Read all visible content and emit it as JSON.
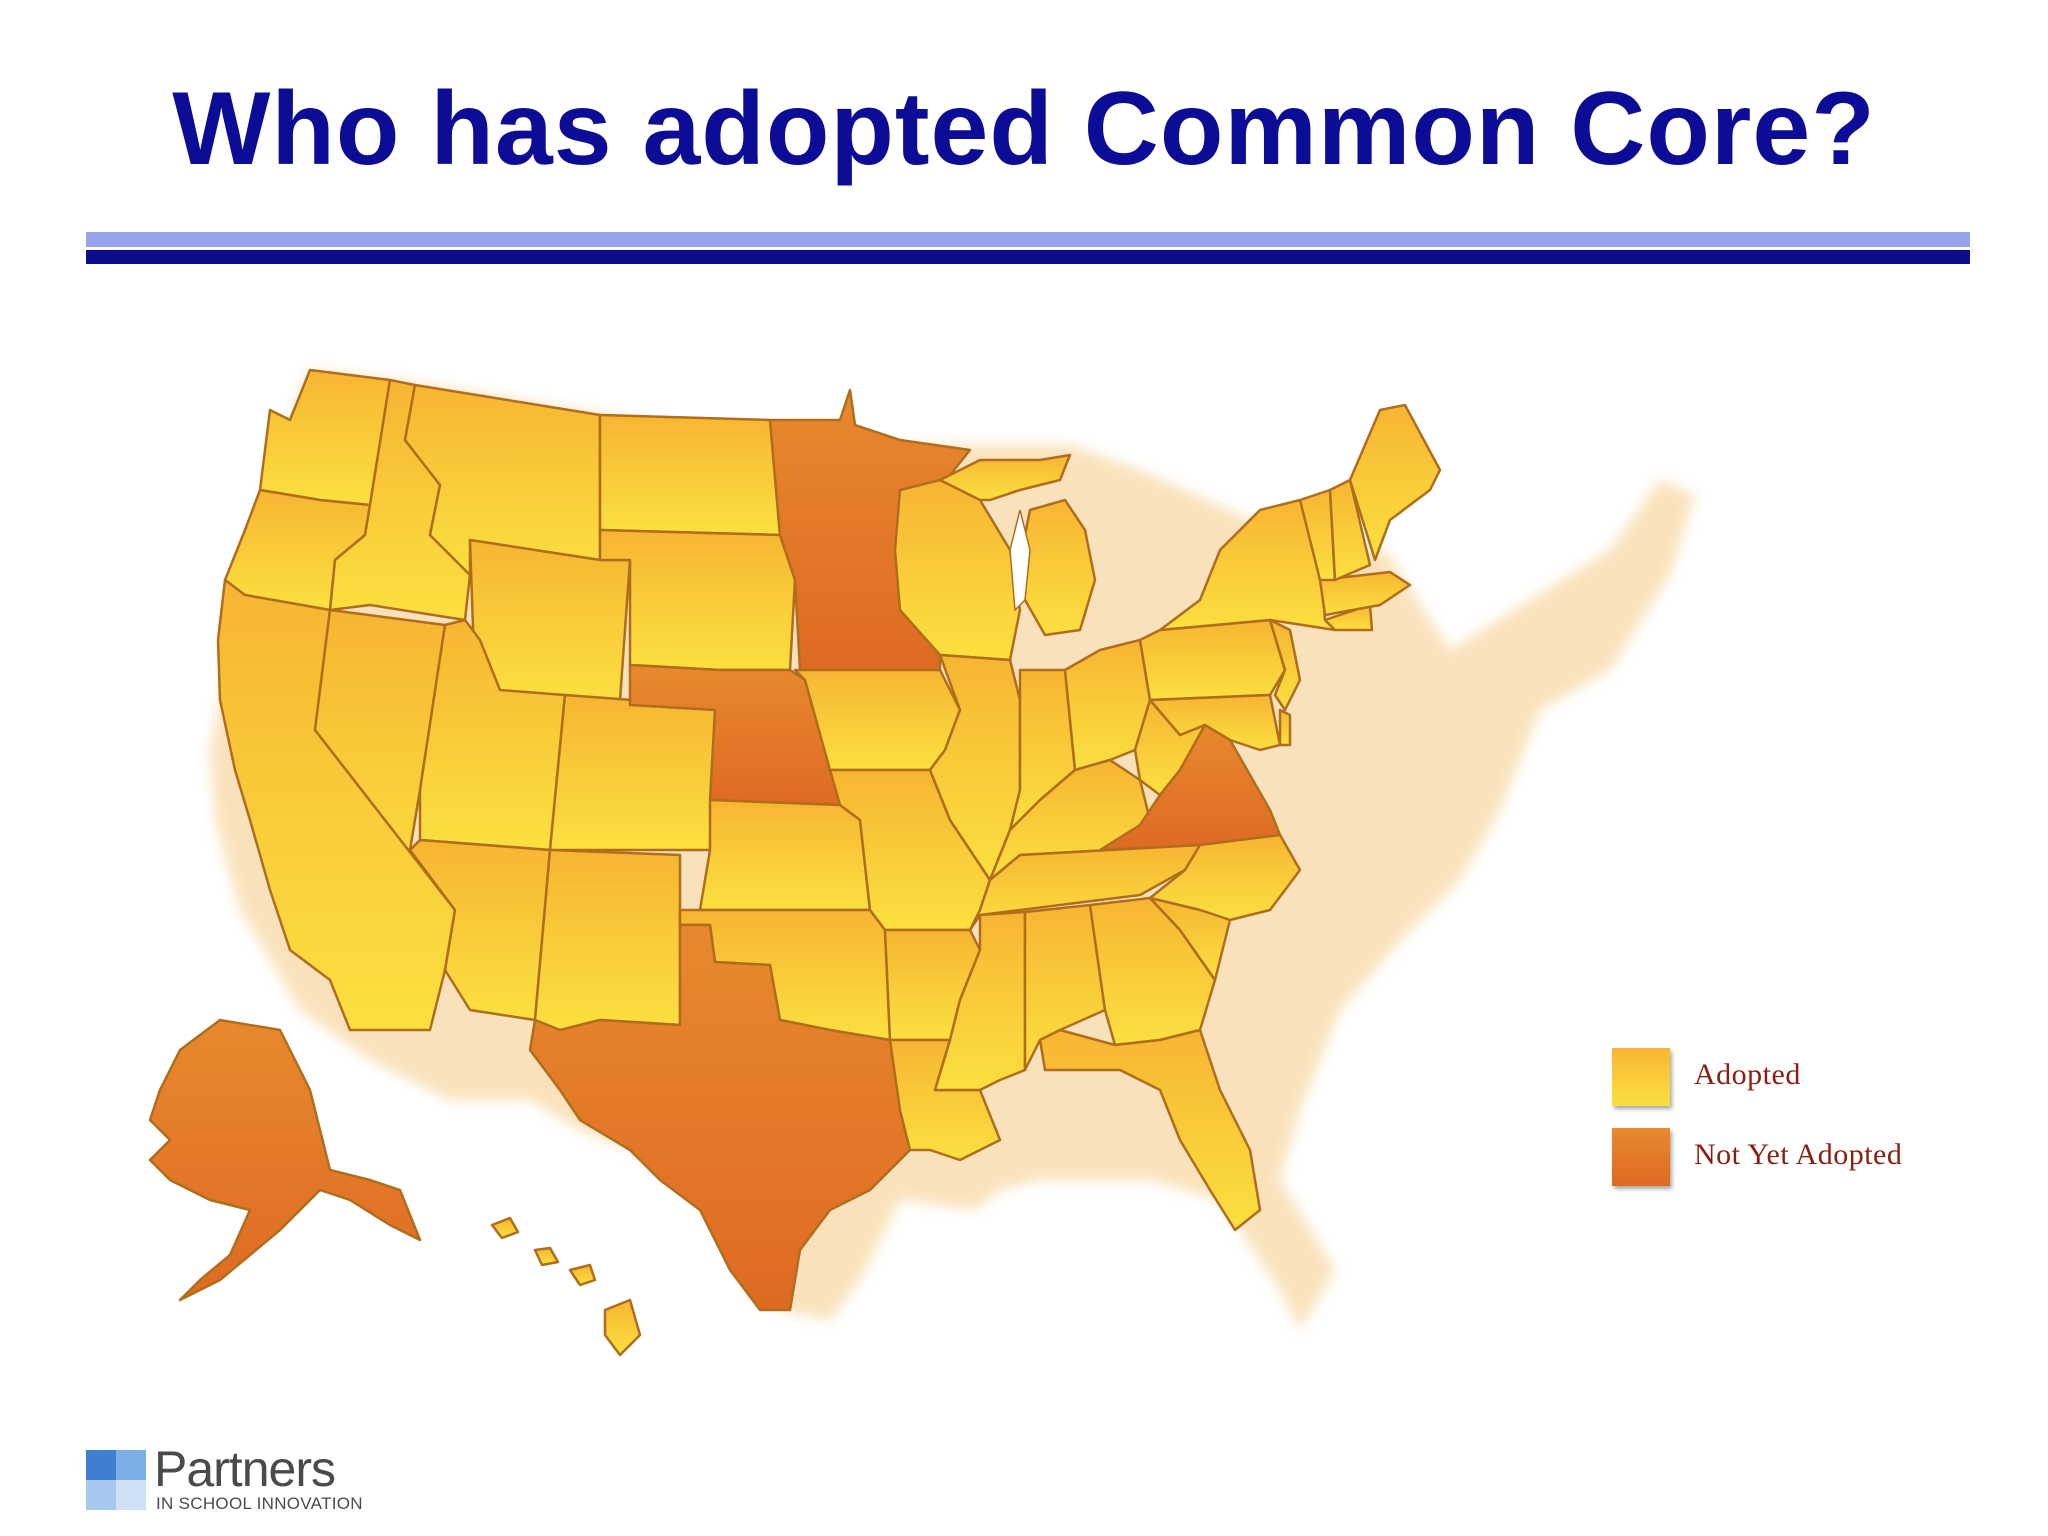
{
  "slide": {
    "title": "Who has adopted Common Core?"
  },
  "colors": {
    "title": "#0c0c96",
    "rule_light": "#98a3ee",
    "rule_dark": "#0b0b8c",
    "adopted": "#f8c43a",
    "not_yet_adopted": "#e37828",
    "state_border": "#b06d1c",
    "legend_text": "#8a1e12"
  },
  "legend": {
    "adopted_label": "Adopted",
    "not_adopted_label": "Not Yet Adopted"
  },
  "map": {
    "not_yet_adopted_states": [
      "Alaska",
      "Texas",
      "Nebraska",
      "Minnesota",
      "Virginia"
    ]
  },
  "logo": {
    "name": "Partners",
    "subtitle": "IN SCHOOL INNOVATION"
  }
}
